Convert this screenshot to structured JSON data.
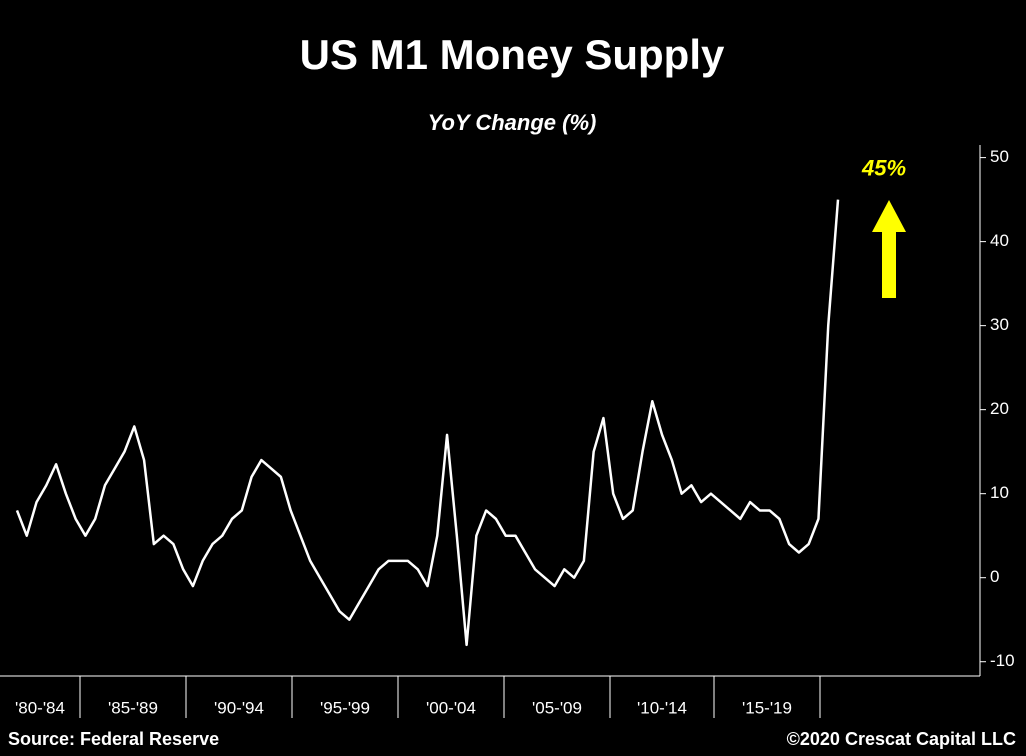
{
  "chart_data": {
    "type": "line",
    "title": "US M1 Money Supply",
    "subtitle": "YoY Change (%)",
    "x_band_labels": [
      "'80-'84",
      "'85-'89",
      "'90-'94",
      "'95-'99",
      "'00-'04",
      "'05-'09",
      "'10-'14",
      "'15-'19"
    ],
    "values": [
      8,
      5,
      9,
      11,
      13.5,
      10,
      7,
      5,
      7,
      11,
      13,
      15,
      18,
      14,
      4,
      5,
      4,
      1,
      -1,
      2,
      4,
      5,
      7,
      8,
      12,
      14,
      13,
      12,
      8,
      5,
      2,
      0,
      -2,
      -4,
      -5,
      -3,
      -1,
      1,
      2,
      2,
      2,
      1,
      -1,
      5,
      17,
      5,
      -8,
      5,
      8,
      7,
      5,
      5,
      3,
      1,
      0,
      -1,
      1,
      0,
      2,
      15,
      19,
      10,
      7,
      8,
      15,
      21,
      17,
      14,
      10,
      11,
      9,
      10,
      9,
      8,
      7,
      9,
      8,
      8,
      7,
      4,
      3,
      4,
      7,
      30,
      45
    ],
    "color": "#ffffff",
    "ylim": [
      -11.7,
      51.5
    ],
    "yticks": [
      -10,
      0,
      10,
      20,
      30,
      40,
      50
    ],
    "annotation": "45%",
    "annotation_color": "#ffff00",
    "source": "Source: Federal Reserve",
    "copyright": "©2020 Crescat Capital LLC"
  }
}
